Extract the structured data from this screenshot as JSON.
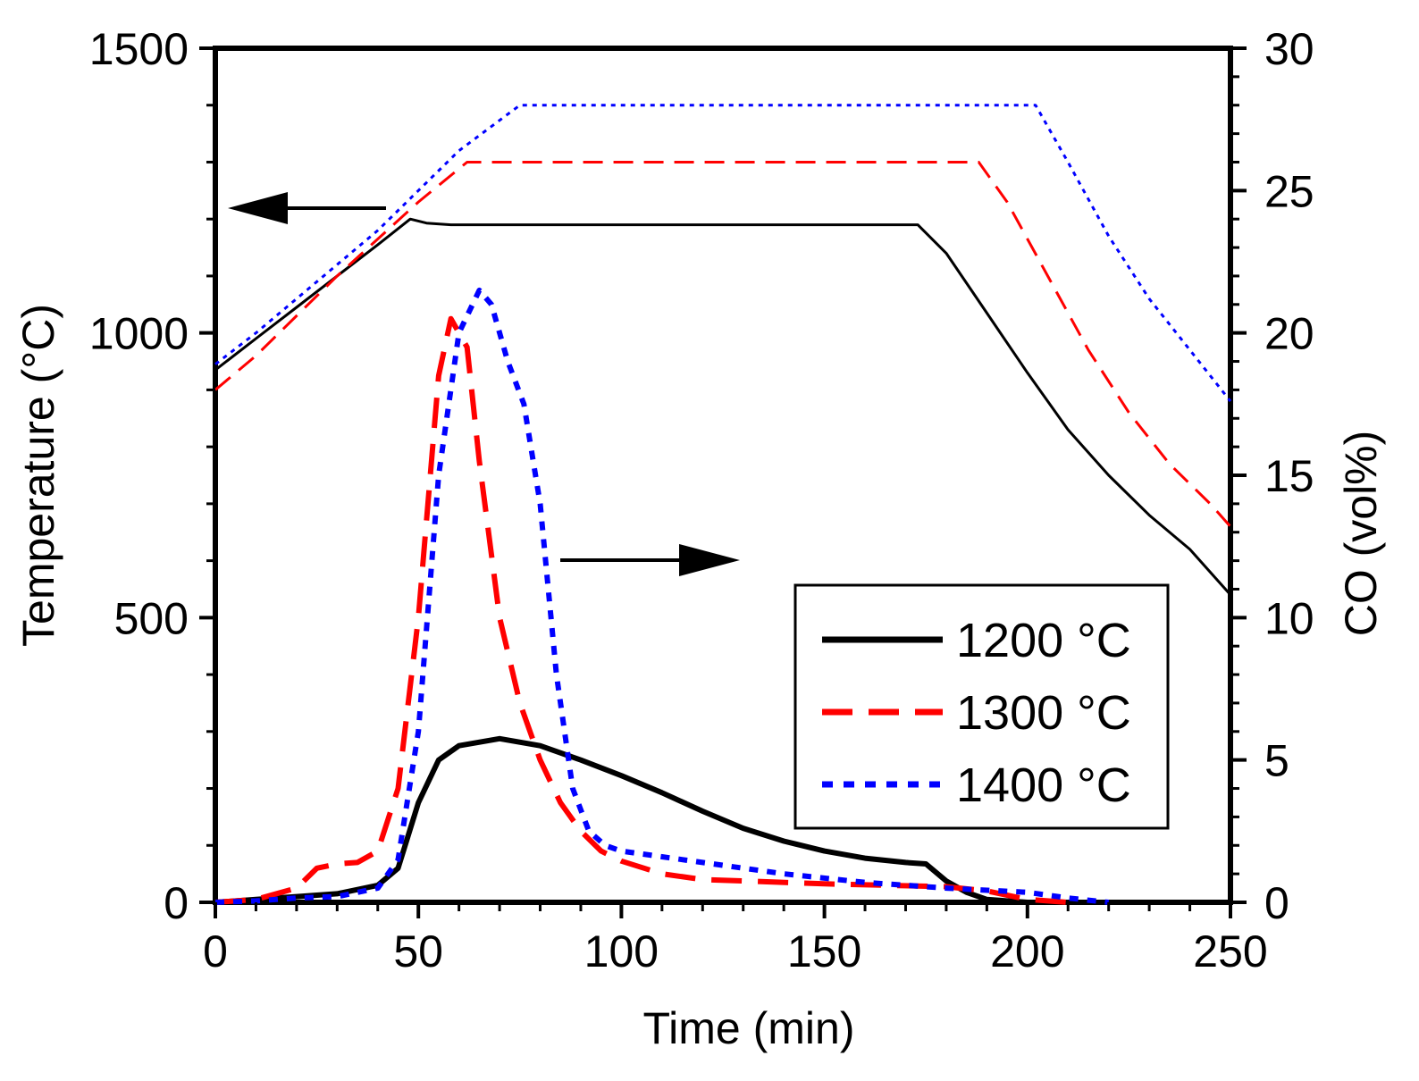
{
  "chart_data": {
    "type": "line",
    "xlabel": "Time (min)",
    "ylabel_left": "Temperature (°C)",
    "ylabel_right": "CO (vol%)",
    "xlim": [
      0,
      250
    ],
    "ylim_left": [
      0,
      1500
    ],
    "ylim_right": [
      0,
      30
    ],
    "x_ticks": [
      0,
      50,
      100,
      150,
      200,
      250
    ],
    "y_left_ticks": [
      0,
      500,
      1000,
      1500
    ],
    "y_right_ticks": [
      0,
      5,
      10,
      15,
      20,
      25,
      30
    ],
    "legend": {
      "placement": "lower-right",
      "entries": [
        "1200 °C",
        "1300 °C",
        "1400 °C"
      ]
    },
    "annotations": [
      {
        "type": "arrow",
        "direction": "left",
        "meaning": "temperature curves use left axis"
      },
      {
        "type": "arrow",
        "direction": "right",
        "meaning": "CO curves use right axis"
      }
    ],
    "series": [
      {
        "name": "1200 °C",
        "axis": "left",
        "quantity": "temperature",
        "color": "#000000",
        "style": "solid",
        "x": [
          0,
          10,
          20,
          30,
          40,
          48,
          52,
          58,
          70,
          100,
          150,
          173,
          180,
          190,
          200,
          210,
          220,
          230,
          240,
          250
        ],
        "y": [
          935,
          990,
          1045,
          1100,
          1155,
          1200,
          1193,
          1190,
          1190,
          1190,
          1190,
          1190,
          1140,
          1035,
          930,
          830,
          750,
          680,
          620,
          540
        ]
      },
      {
        "name": "1300 °C",
        "axis": "left",
        "quantity": "temperature",
        "color": "#ff0000",
        "style": "dashed",
        "x": [
          0,
          10,
          20,
          30,
          40,
          50,
          62,
          100,
          150,
          188,
          195,
          205,
          215,
          225,
          235,
          245,
          250
        ],
        "y": [
          900,
          960,
          1030,
          1100,
          1165,
          1230,
          1300,
          1300,
          1300,
          1300,
          1230,
          1100,
          970,
          860,
          770,
          700,
          660
        ]
      },
      {
        "name": "1400 °C",
        "axis": "left",
        "quantity": "temperature",
        "color": "#0000ff",
        "style": "dotted",
        "x": [
          0,
          10,
          20,
          30,
          40,
          50,
          60,
          75,
          100,
          150,
          202,
          210,
          220,
          230,
          240,
          250
        ],
        "y": [
          945,
          1000,
          1060,
          1120,
          1180,
          1250,
          1320,
          1400,
          1400,
          1400,
          1400,
          1300,
          1170,
          1060,
          970,
          880
        ]
      },
      {
        "name": "1200 °C",
        "axis": "right",
        "quantity": "CO",
        "color": "#000000",
        "style": "solid",
        "x": [
          0,
          10,
          20,
          30,
          40,
          45,
          50,
          55,
          60,
          70,
          80,
          90,
          100,
          110,
          120,
          130,
          140,
          150,
          160,
          170,
          175,
          180,
          185,
          190,
          200,
          210
        ],
        "y": [
          0,
          0.1,
          0.2,
          0.3,
          0.6,
          1.2,
          3.5,
          5.0,
          5.5,
          5.75,
          5.5,
          5.0,
          4.45,
          3.85,
          3.2,
          2.6,
          2.15,
          1.8,
          1.55,
          1.4,
          1.35,
          0.75,
          0.35,
          0.1,
          0,
          0
        ]
      },
      {
        "name": "1300 °C",
        "axis": "right",
        "quantity": "CO",
        "color": "#ff0000",
        "style": "dashed",
        "x": [
          0,
          10,
          20,
          25,
          30,
          35,
          40,
          45,
          50,
          55,
          58,
          62,
          65,
          70,
          75,
          80,
          85,
          90,
          95,
          100,
          110,
          120,
          150,
          180,
          190,
          200,
          210
        ],
        "y": [
          0,
          0.1,
          0.5,
          1.2,
          1.35,
          1.4,
          1.8,
          4.0,
          10.0,
          18.5,
          20.5,
          19.5,
          15.5,
          10.0,
          7.0,
          5.0,
          3.5,
          2.5,
          1.8,
          1.45,
          1.0,
          0.8,
          0.65,
          0.55,
          0.4,
          0.1,
          0
        ]
      },
      {
        "name": "1400 °C",
        "axis": "right",
        "quantity": "CO",
        "color": "#0000ff",
        "style": "dotted",
        "x": [
          0,
          10,
          20,
          30,
          40,
          45,
          50,
          55,
          60,
          65,
          68,
          72,
          76,
          80,
          84,
          88,
          92,
          96,
          100,
          110,
          120,
          140,
          160,
          180,
          200,
          210,
          220
        ],
        "y": [
          0,
          0.05,
          0.15,
          0.2,
          0.5,
          1.5,
          6.0,
          15.0,
          20.0,
          21.5,
          21.0,
          19.0,
          17.5,
          14.0,
          8.0,
          4.0,
          2.5,
          2.0,
          1.8,
          1.6,
          1.4,
          1.0,
          0.7,
          0.5,
          0.35,
          0.15,
          0
        ]
      }
    ]
  }
}
